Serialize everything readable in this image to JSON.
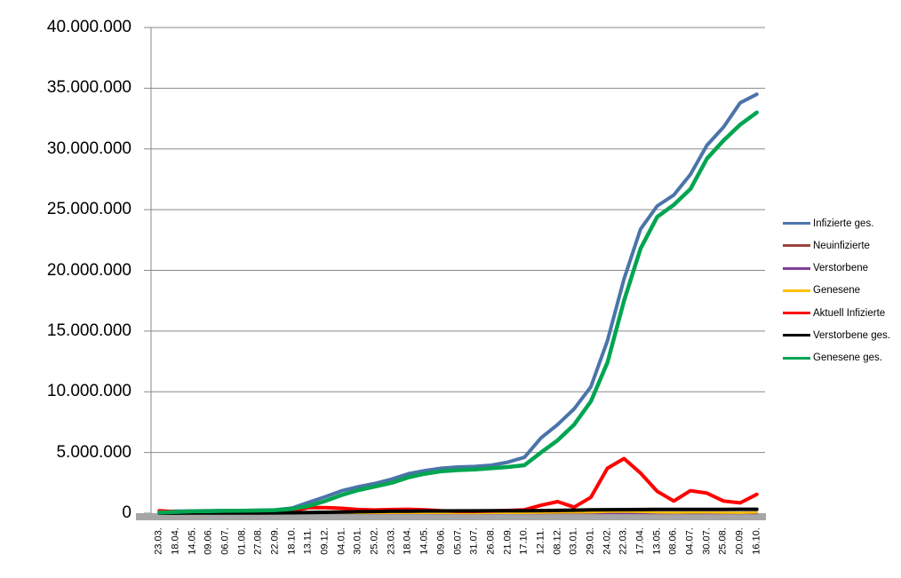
{
  "chart_data": {
    "type": "line",
    "title": "",
    "grid": true,
    "legend_position": "right",
    "axis_color": "#8a8a8a",
    "baseline_band_color": "#a6a6a6",
    "y_axis": {
      "min": 0,
      "max": 40000000,
      "step": 5000000,
      "tick_labels": [
        "0",
        "5.000.000",
        "10.000.000",
        "15.000.000",
        "20.000.000",
        "25.000.000",
        "30.000.000",
        "35.000.000",
        "40.000.000"
      ]
    },
    "categories": [
      "23.03.",
      "18.04.",
      "14.05.",
      "09.06.",
      "06.07.",
      "01.08.",
      "27.08.",
      "22.09.",
      "18.10.",
      "13.11.",
      "09.12.",
      "04.01.",
      "30.01.",
      "25.02.",
      "23.03.",
      "18.04.",
      "14.05.",
      "09.06.",
      "05.07.",
      "31.07.",
      "26.08.",
      "21.09.",
      "17.10.",
      "12.11.",
      "08.12.",
      "03.01.",
      "29.01.",
      "24.02.",
      "22.03.",
      "17.04.",
      "13.05.",
      "08.06.",
      "04.07.",
      "30.07.",
      "25.08.",
      "20.09.",
      "16.10."
    ],
    "series": [
      {
        "name": "Infizierte ges.",
        "color": "#4b74a9",
        "width": 4,
        "values": [
          100000,
          160000,
          180000,
          200000,
          210000,
          215000,
          240000,
          280000,
          420000,
          900000,
          1350000,
          1850000,
          2180000,
          2450000,
          2800000,
          3250000,
          3500000,
          3700000,
          3800000,
          3850000,
          3950000,
          4200000,
          4600000,
          6200000,
          7300000,
          8600000,
          10400000,
          14200000,
          19300000,
          23400000,
          25300000,
          26200000,
          27900000,
          30300000,
          31800000,
          33800000,
          34500000
        ]
      },
      {
        "name": "Neuinfizierte",
        "color": "#9e4340",
        "width": 2.5,
        "values": [
          15000,
          8000,
          5000,
          4000,
          4000,
          4000,
          6000,
          10000,
          25000,
          35000,
          30000,
          28000,
          20000,
          18000,
          22000,
          20000,
          15000,
          9000,
          7000,
          9000,
          10000,
          14000,
          25000,
          45000,
          55000,
          40000,
          70000,
          120000,
          95000,
          55000,
          35000,
          30000,
          50000,
          40000,
          28000,
          30000,
          65000
        ]
      },
      {
        "name": "Verstorbene",
        "color": "#7d3f98",
        "width": 2.5,
        "values": [
          2000,
          2000,
          2000,
          2000,
          1000,
          1000,
          1000,
          1000,
          2000,
          4000,
          5000,
          5000,
          4000,
          3000,
          3000,
          3000,
          2000,
          2000,
          1000,
          1000,
          1000,
          1000,
          2000,
          3000,
          4000,
          4000,
          4000,
          5000,
          5000,
          4000,
          3000,
          2000,
          3000,
          3000,
          2000,
          2000,
          3000
        ]
      },
      {
        "name": "Genesene",
        "color": "#ffc000",
        "width": 2.5,
        "values": [
          5000,
          10000,
          9000,
          5000,
          4000,
          4000,
          6000,
          9000,
          18000,
          28000,
          32000,
          30000,
          24000,
          20000,
          22000,
          22000,
          18000,
          12000,
          9000,
          10000,
          11000,
          13000,
          22000,
          40000,
          52000,
          48000,
          65000,
          110000,
          135000,
          100000,
          60000,
          40000,
          52000,
          50000,
          38000,
          32000,
          52000
        ]
      },
      {
        "name": "Aktuell Infizierte",
        "color": "#ff0000",
        "width": 4,
        "values": [
          200000,
          120000,
          80000,
          50000,
          40000,
          40000,
          60000,
          100000,
          200000,
          450000,
          450000,
          400000,
          300000,
          260000,
          300000,
          320000,
          280000,
          200000,
          150000,
          150000,
          180000,
          220000,
          280000,
          650000,
          950000,
          500000,
          1300000,
          3700000,
          4500000,
          3300000,
          1800000,
          1000000,
          1850000,
          1650000,
          1000000,
          850000,
          1550000
        ]
      },
      {
        "name": "Verstorbene ges.",
        "color": "#000000",
        "width": 4,
        "values": [
          5000,
          10000,
          15000,
          20000,
          20000,
          20000,
          25000,
          30000,
          35000,
          50000,
          70000,
          95000,
          120000,
          140000,
          160000,
          170000,
          180000,
          185000,
          190000,
          190000,
          195000,
          200000,
          205000,
          215000,
          230000,
          250000,
          270000,
          285000,
          295000,
          300000,
          305000,
          305000,
          310000,
          310000,
          315000,
          320000,
          320000
        ]
      },
      {
        "name": "Genesene ges.",
        "color": "#00a551",
        "width": 4.5,
        "values": [
          50000,
          100000,
          150000,
          170000,
          190000,
          200000,
          220000,
          250000,
          350000,
          600000,
          1000000,
          1500000,
          1900000,
          2200000,
          2500000,
          2950000,
          3250000,
          3450000,
          3550000,
          3600000,
          3700000,
          3800000,
          3950000,
          5000000,
          6000000,
          7300000,
          9200000,
          12400000,
          17500000,
          21800000,
          24400000,
          25400000,
          26700000,
          29200000,
          30700000,
          32000000,
          33000000
        ]
      }
    ]
  }
}
